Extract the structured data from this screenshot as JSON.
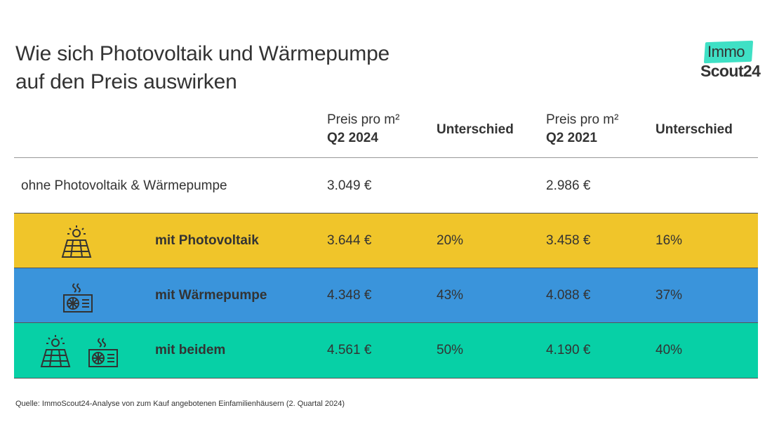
{
  "title": {
    "line1": "Wie sich Photovoltaik und Wärmepumpe",
    "line2": "auf den Preis auswirken"
  },
  "logo": {
    "top": "Immo",
    "bottom": "Scout24"
  },
  "header": {
    "col1_line1": "Preis pro m²",
    "col1_line2": "Q2 2024",
    "col2": "Unterschied",
    "col3_line1": "Preis pro m²",
    "col3_line2": "Q2 2021",
    "col4": "Unterschied"
  },
  "rows": [
    {
      "label": "ohne Photovoltaik & Wärmepumpe",
      "price_2024": "3.049 €",
      "diff_2024": "",
      "price_2021": "2.986 €",
      "diff_2021": "",
      "color": "#ffffff"
    },
    {
      "label": "mit Photovoltaik",
      "price_2024": "3.644 €",
      "diff_2024": "20%",
      "price_2021": "3.458 €",
      "diff_2021": "16%",
      "color": "#f0c52a",
      "icons": [
        "solar-panel-icon"
      ]
    },
    {
      "label": "mit Wärmepumpe",
      "price_2024": "4.348 €",
      "diff_2024": "43%",
      "price_2021": "4.088 €",
      "diff_2021": "37%",
      "color": "#3a94db",
      "icons": [
        "heat-pump-icon"
      ]
    },
    {
      "label": "mit beidem",
      "price_2024": "4.561 €",
      "diff_2024": "50%",
      "price_2021": "4.190 €",
      "diff_2021": "40%",
      "color": "#07d0a6",
      "icons": [
        "solar-panel-icon",
        "heat-pump-icon"
      ]
    }
  ],
  "source": "Quelle: ImmoScout24-Analyse von zum Kauf angebotenen Einfamilienhäusern (2. Quartal 2024)"
}
